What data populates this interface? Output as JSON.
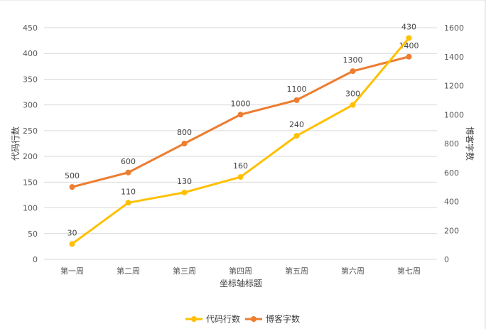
{
  "chart_data": {
    "type": "line",
    "categories": [
      "第一周",
      "第二周",
      "第三周",
      "第四周",
      "第五周",
      "第六周",
      "第七周"
    ],
    "series": [
      {
        "name": "代码行数",
        "axis": "left",
        "color": "#FFC000",
        "values": [
          30,
          110,
          130,
          160,
          240,
          300,
          430
        ]
      },
      {
        "name": "博客字数",
        "axis": "right",
        "color": "#ED7D31",
        "values": [
          500,
          600,
          800,
          1000,
          1100,
          1300,
          1400
        ]
      }
    ],
    "xlabel": "坐标轴标题",
    "ylabel": "代码行数",
    "ylabel_right": "博客字数",
    "ylim": [
      0,
      450
    ],
    "ylim_right": [
      0,
      1600
    ],
    "yticks": [
      0,
      50,
      100,
      150,
      200,
      250,
      300,
      350,
      400,
      450
    ],
    "yticks_right": [
      0,
      200,
      400,
      600,
      800,
      1000,
      1200,
      1400,
      1600
    ],
    "grid": true,
    "legend_position": "bottom",
    "data_labels": true
  }
}
